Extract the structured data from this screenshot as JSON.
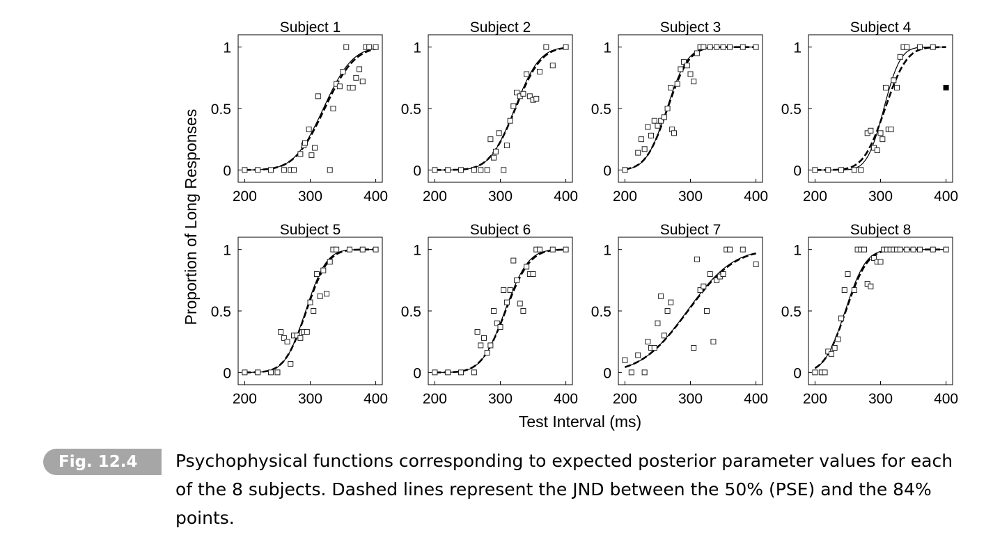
{
  "caption": {
    "label": "Fig. 12.4",
    "text": "Psychophysical functions corresponding to expected posterior parameter values for each of the 8 subjects. Dashed lines represent the JND between the 50% (PSE) and the 84% points."
  },
  "figure": {
    "ylabel": "Proportion of Long Responses",
    "xlabel": "Test Interval (ms)"
  },
  "chart_data": [
    {
      "type": "scatter",
      "title": "Subject 1",
      "xlim": [
        190,
        410
      ],
      "ylim": [
        -0.1,
        1.1
      ],
      "xticks": [
        200,
        300,
        400
      ],
      "yticks": [
        0,
        0.5,
        1
      ],
      "curves": {
        "solid": {
          "pse": 320,
          "jnd": 35
        },
        "dashed": {
          "pse": 322,
          "jnd": 36
        }
      },
      "points": [
        [
          200,
          0
        ],
        [
          220,
          0
        ],
        [
          240,
          0
        ],
        [
          260,
          0
        ],
        [
          270,
          0
        ],
        [
          275,
          0
        ],
        [
          285,
          0.13
        ],
        [
          290,
          0.2
        ],
        [
          292,
          0.22
        ],
        [
          298,
          0.33
        ],
        [
          302,
          0.12
        ],
        [
          307,
          0.18
        ],
        [
          312,
          0.6
        ],
        [
          330,
          0
        ],
        [
          335,
          0.5
        ],
        [
          340,
          0.7
        ],
        [
          345,
          0.68
        ],
        [
          350,
          0.8
        ],
        [
          355,
          1
        ],
        [
          360,
          0.67
        ],
        [
          365,
          0.67
        ],
        [
          370,
          0.75
        ],
        [
          375,
          0.82
        ],
        [
          380,
          0.72
        ],
        [
          385,
          1
        ],
        [
          390,
          1
        ],
        [
          400,
          1
        ]
      ]
    },
    {
      "type": "scatter",
      "title": "Subject 2",
      "xlim": [
        190,
        410
      ],
      "ylim": [
        -0.1,
        1.1
      ],
      "xticks": [
        200,
        300,
        400
      ],
      "yticks": [
        0,
        0.5,
        1
      ],
      "curves": {
        "solid": {
          "pse": 322,
          "jnd": 30
        },
        "dashed": {
          "pse": 323,
          "jnd": 31
        }
      },
      "points": [
        [
          200,
          0
        ],
        [
          220,
          0
        ],
        [
          240,
          0
        ],
        [
          260,
          0
        ],
        [
          270,
          0
        ],
        [
          280,
          0
        ],
        [
          285,
          0.25
        ],
        [
          290,
          0.1
        ],
        [
          293,
          0.15
        ],
        [
          298,
          0.3
        ],
        [
          305,
          0
        ],
        [
          310,
          0.2
        ],
        [
          315,
          0.4
        ],
        [
          320,
          0.52
        ],
        [
          325,
          0.63
        ],
        [
          330,
          0.6
        ],
        [
          335,
          0.62
        ],
        [
          340,
          0.78
        ],
        [
          345,
          0.6
        ],
        [
          350,
          0.57
        ],
        [
          355,
          0.58
        ],
        [
          360,
          0.8
        ],
        [
          370,
          1
        ],
        [
          380,
          0.85
        ],
        [
          400,
          1
        ]
      ]
    },
    {
      "type": "scatter",
      "title": "Subject 3",
      "xlim": [
        190,
        410
      ],
      "ylim": [
        -0.1,
        1.1
      ],
      "xticks": [
        200,
        300,
        400
      ],
      "yticks": [
        0,
        0.5,
        1
      ],
      "curves": {
        "solid": {
          "pse": 264,
          "jnd": 25
        },
        "dashed": {
          "pse": 265,
          "jnd": 26
        }
      },
      "points": [
        [
          200,
          0
        ],
        [
          220,
          0.14
        ],
        [
          225,
          0.25
        ],
        [
          230,
          0.17
        ],
        [
          235,
          0.35
        ],
        [
          240,
          0.28
        ],
        [
          245,
          0.4
        ],
        [
          250,
          0.36
        ],
        [
          255,
          0.4
        ],
        [
          260,
          0.43
        ],
        [
          265,
          0.5
        ],
        [
          270,
          0.67
        ],
        [
          272,
          0.33
        ],
        [
          275,
          0.3
        ],
        [
          280,
          0.7
        ],
        [
          285,
          0.82
        ],
        [
          290,
          0.88
        ],
        [
          295,
          0.85
        ],
        [
          300,
          0.78
        ],
        [
          305,
          0.72
        ],
        [
          310,
          0.95
        ],
        [
          315,
          1
        ],
        [
          320,
          1
        ],
        [
          330,
          1
        ],
        [
          340,
          1
        ],
        [
          350,
          1
        ],
        [
          360,
          1
        ],
        [
          380,
          1
        ],
        [
          400,
          1
        ]
      ]
    },
    {
      "type": "scatter",
      "title": "Subject 4",
      "xlim": [
        190,
        410
      ],
      "ylim": [
        -0.1,
        1.1
      ],
      "xticks": [
        200,
        300,
        400
      ],
      "yticks": [
        0,
        0.5,
        1
      ],
      "curves": {
        "solid": {
          "pse": 305,
          "jnd": 20
        },
        "dashed": {
          "pse": 307,
          "jnd": 26
        }
      },
      "points": [
        [
          200,
          0
        ],
        [
          220,
          0
        ],
        [
          240,
          0
        ],
        [
          260,
          0
        ],
        [
          270,
          0
        ],
        [
          280,
          0.3
        ],
        [
          285,
          0.32
        ],
        [
          290,
          0.18
        ],
        [
          295,
          0.16
        ],
        [
          300,
          0.3
        ],
        [
          303,
          0.25
        ],
        [
          308,
          0.67
        ],
        [
          312,
          0.33
        ],
        [
          316,
          0.33
        ],
        [
          320,
          0.73
        ],
        [
          325,
          0.67
        ],
        [
          330,
          0.92
        ],
        [
          335,
          1
        ],
        [
          340,
          1
        ],
        [
          360,
          1
        ],
        [
          380,
          1
        ]
      ],
      "outlier": [
        400,
        0.67
      ]
    },
    {
      "type": "scatter",
      "title": "Subject 5",
      "xlim": [
        190,
        410
      ],
      "ylim": [
        -0.1,
        1.1
      ],
      "xticks": [
        200,
        300,
        400
      ],
      "yticks": [
        0,
        0.5,
        1
      ],
      "curves": {
        "solid": {
          "pse": 293,
          "jnd": 25
        },
        "dashed": {
          "pse": 294,
          "jnd": 26
        }
      },
      "points": [
        [
          200,
          0
        ],
        [
          220,
          0
        ],
        [
          240,
          0
        ],
        [
          250,
          0
        ],
        [
          255,
          0.33
        ],
        [
          260,
          0.28
        ],
        [
          265,
          0.25
        ],
        [
          270,
          0.07
        ],
        [
          275,
          0.3
        ],
        [
          280,
          0.3
        ],
        [
          285,
          0.28
        ],
        [
          290,
          0.33
        ],
        [
          295,
          0.33
        ],
        [
          300,
          0.57
        ],
        [
          305,
          0.5
        ],
        [
          310,
          0.8
        ],
        [
          315,
          0.62
        ],
        [
          320,
          0.83
        ],
        [
          325,
          0.64
        ],
        [
          330,
          0.9
        ],
        [
          335,
          1
        ],
        [
          340,
          1
        ],
        [
          360,
          1
        ],
        [
          380,
          1
        ],
        [
          400,
          1
        ]
      ]
    },
    {
      "type": "scatter",
      "title": "Subject 6",
      "xlim": [
        190,
        410
      ],
      "ylim": [
        -0.1,
        1.1
      ],
      "xticks": [
        200,
        300,
        400
      ],
      "yticks": [
        0,
        0.5,
        1
      ],
      "curves": {
        "solid": {
          "pse": 307,
          "jnd": 28
        },
        "dashed": {
          "pse": 308,
          "jnd": 29
        }
      },
      "points": [
        [
          200,
          0
        ],
        [
          220,
          0
        ],
        [
          240,
          0
        ],
        [
          260,
          0
        ],
        [
          265,
          0.33
        ],
        [
          270,
          0.22
        ],
        [
          275,
          0.28
        ],
        [
          280,
          0.16
        ],
        [
          285,
          0.22
        ],
        [
          290,
          0.5
        ],
        [
          295,
          0.4
        ],
        [
          300,
          0.37
        ],
        [
          305,
          0.67
        ],
        [
          310,
          0.57
        ],
        [
          315,
          0.67
        ],
        [
          320,
          0.91
        ],
        [
          325,
          0.75
        ],
        [
          330,
          0.56
        ],
        [
          335,
          0.5
        ],
        [
          340,
          0.86
        ],
        [
          345,
          0.8
        ],
        [
          350,
          0.8
        ],
        [
          355,
          1
        ],
        [
          360,
          1
        ],
        [
          380,
          1
        ],
        [
          400,
          1
        ]
      ]
    },
    {
      "type": "scatter",
      "title": "Subject 7",
      "xlim": [
        190,
        410
      ],
      "ylim": [
        -0.1,
        1.1
      ],
      "xticks": [
        200,
        300,
        400
      ],
      "yticks": [
        0,
        0.5,
        1
      ],
      "curves": {
        "solid": {
          "pse": 295,
          "jnd": 55
        },
        "dashed": {
          "pse": 296,
          "jnd": 56
        }
      },
      "points": [
        [
          200,
          0.1
        ],
        [
          210,
          0
        ],
        [
          220,
          0.14
        ],
        [
          230,
          0
        ],
        [
          235,
          0.25
        ],
        [
          240,
          0.2
        ],
        [
          245,
          0.2
        ],
        [
          250,
          0.4
        ],
        [
          255,
          0.62
        ],
        [
          260,
          0.3
        ],
        [
          265,
          0.5
        ],
        [
          270,
          0.57
        ],
        [
          305,
          0.2
        ],
        [
          310,
          0.92
        ],
        [
          315,
          0.67
        ],
        [
          320,
          0.7
        ],
        [
          325,
          0.5
        ],
        [
          330,
          0.8
        ],
        [
          335,
          0.25
        ],
        [
          340,
          0.75
        ],
        [
          345,
          0.78
        ],
        [
          350,
          0.8
        ],
        [
          355,
          1
        ],
        [
          360,
          1
        ],
        [
          380,
          1
        ],
        [
          400,
          0.88
        ]
      ]
    },
    {
      "type": "scatter",
      "title": "Subject 8",
      "xlim": [
        190,
        410
      ],
      "ylim": [
        -0.1,
        1.1
      ],
      "xticks": [
        200,
        300,
        400
      ],
      "yticks": [
        0,
        0.5,
        1
      ],
      "curves": {
        "solid": {
          "pse": 246,
          "jnd": 25
        },
        "dashed": {
          "pse": 247,
          "jnd": 26
        }
      },
      "points": [
        [
          200,
          0
        ],
        [
          210,
          0
        ],
        [
          215,
          0
        ],
        [
          220,
          0.17
        ],
        [
          225,
          0.15
        ],
        [
          230,
          0.2
        ],
        [
          235,
          0.27
        ],
        [
          240,
          0.44
        ],
        [
          245,
          0.67
        ],
        [
          250,
          0.8
        ],
        [
          260,
          0.67
        ],
        [
          265,
          1
        ],
        [
          270,
          1
        ],
        [
          275,
          1
        ],
        [
          280,
          0.72
        ],
        [
          285,
          0.7
        ],
        [
          290,
          0.93
        ],
        [
          295,
          0.9
        ],
        [
          300,
          0.9
        ],
        [
          305,
          1
        ],
        [
          310,
          1
        ],
        [
          315,
          1
        ],
        [
          320,
          1
        ],
        [
          325,
          1
        ],
        [
          330,
          1
        ],
        [
          340,
          1
        ],
        [
          350,
          1
        ],
        [
          360,
          1
        ],
        [
          380,
          1
        ],
        [
          400,
          1
        ]
      ]
    }
  ]
}
